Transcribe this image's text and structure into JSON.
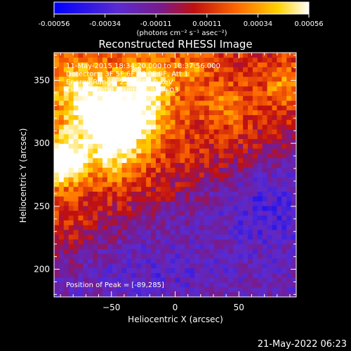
{
  "chart_data": {
    "type": "heatmap",
    "title": "Reconstructed RHESSI Image",
    "xlabel": "Heliocentric X (arcsec)",
    "ylabel": "Heliocentric Y (arcsec)",
    "xlim": [
      -95,
      95
    ],
    "ylim": [
      178,
      372
    ],
    "xticks": [
      -50,
      0,
      50
    ],
    "yticks": [
      200,
      250,
      300,
      350
    ],
    "colorbar": {
      "ticks": [
        "-0.00056",
        "-0.00034",
        "-0.00011",
        "0.00011",
        "0.00034",
        "0.00056"
      ],
      "range": [
        -0.00056,
        0.00056
      ],
      "colormap": [
        "#0000ff",
        "#5a2bd0",
        "#7a1a8a",
        "#c01010",
        "#ff6a00",
        "#ffd200",
        "#ffffff"
      ]
    },
    "units": "(photons cm⁻² s⁻¹ asec⁻²)",
    "annotations": [
      "11-May-2015 18:34:20.000 to 18:37:56.000",
      "Detectors: 3F 5F 6F 7F 8F 9F, Att 1",
      "Energy Range: 25.0 - 50.0 keV",
      "Clean     Total counts: 5.83E+03"
    ],
    "peak_label": "Position of Peak = [-89,285]",
    "peak": [
      -89,
      285
    ]
  },
  "footer_date": "21-May-2022 06:23"
}
